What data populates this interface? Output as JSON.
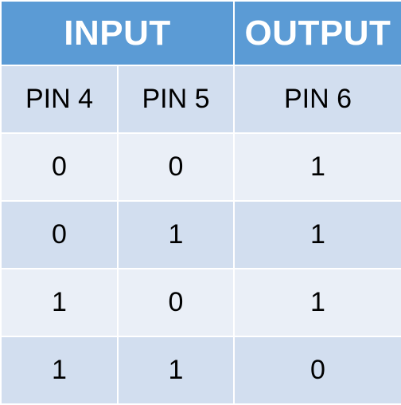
{
  "table": {
    "group_headers": {
      "input": "INPUT",
      "output": "OUTPUT"
    },
    "column_headers": [
      "PIN 4",
      "PIN 5",
      "PIN 6"
    ],
    "rows": [
      [
        "0",
        "0",
        "1"
      ],
      [
        "0",
        "1",
        "1"
      ],
      [
        "1",
        "0",
        "1"
      ],
      [
        "1",
        "1",
        "0"
      ]
    ],
    "colors": {
      "header_blue": "#5b9bd5",
      "band_dark": "#d2deef",
      "band_light": "#eaeff7",
      "border": "#ffffff"
    }
  }
}
